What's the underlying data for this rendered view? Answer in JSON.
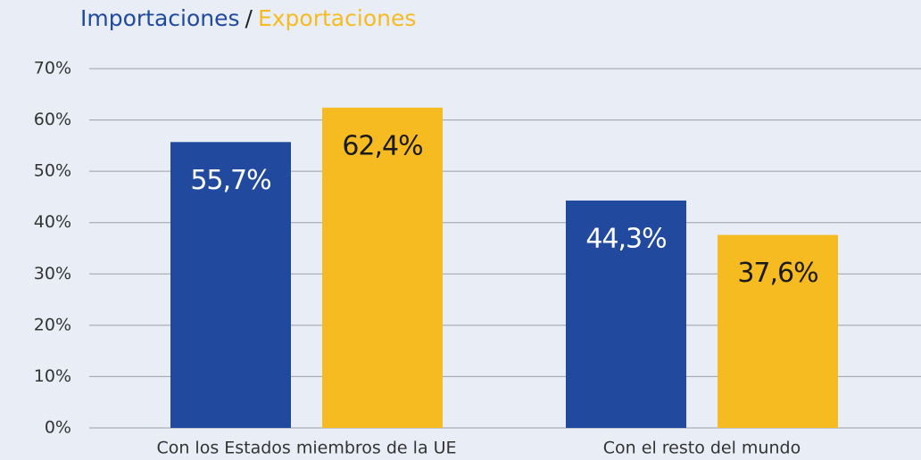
{
  "chart_data": {
    "type": "bar",
    "legend_separator": "/",
    "categories": [
      "Con los Estados miembros de la UE",
      "Con el resto del mundo"
    ],
    "series": [
      {
        "name": "Importaciones",
        "color": "#214a9e",
        "values": [
          55.7,
          44.3
        ],
        "value_labels": [
          "55,7%",
          "44,3%"
        ]
      },
      {
        "name": "Exportaciones",
        "color": "#f7bb22",
        "values": [
          62.4,
          37.6
        ],
        "value_labels": [
          "62,4%",
          "37,6%"
        ]
      }
    ],
    "ylim": [
      0,
      70
    ],
    "yticks": [
      {
        "value": 0,
        "label": "0%"
      },
      {
        "value": 10,
        "label": "10%"
      },
      {
        "value": 20,
        "label": "20%"
      },
      {
        "value": 30,
        "label": "30%"
      },
      {
        "value": 40,
        "label": "40%"
      },
      {
        "value": 50,
        "label": "50%"
      },
      {
        "value": 60,
        "label": "60%"
      },
      {
        "value": 70,
        "label": "70%"
      }
    ],
    "grid": true
  }
}
